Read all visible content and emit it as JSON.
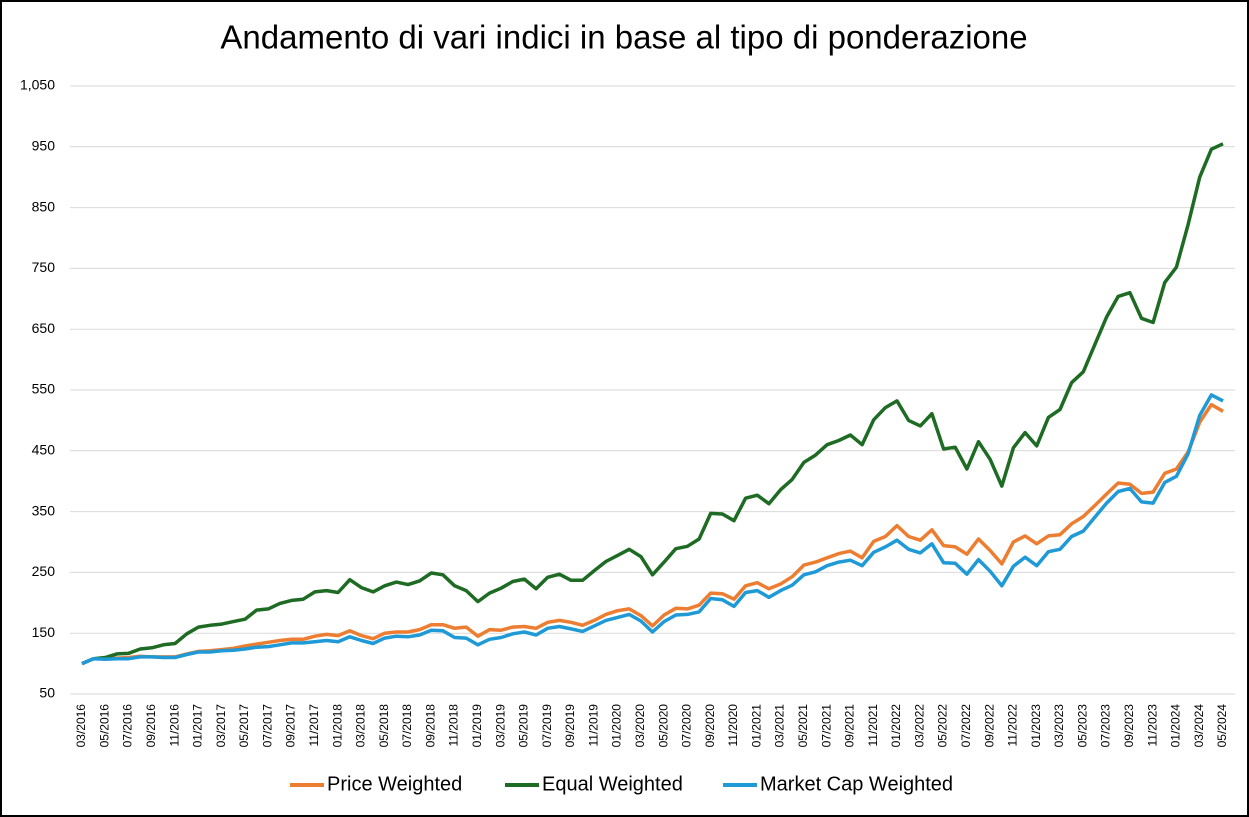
{
  "chart_data": {
    "type": "line",
    "title": "Andamento di vari indici in base al tipo di ponderazione",
    "categories": [
      "03/2016",
      null,
      "05/2016",
      null,
      "07/2016",
      null,
      "09/2016",
      null,
      "11/2016",
      null,
      "01/2017",
      null,
      "03/2017",
      null,
      "05/2017",
      null,
      "07/2017",
      null,
      "09/2017",
      null,
      "11/2017",
      null,
      "01/2018",
      null,
      "03/2018",
      null,
      "05/2018",
      null,
      "07/2018",
      null,
      "09/2018",
      null,
      "11/2018",
      null,
      "01/2019",
      null,
      "03/2019",
      null,
      "05/2019",
      null,
      "07/2019",
      null,
      "09/2019",
      null,
      "11/2019",
      null,
      "01/2020",
      null,
      "03/2020",
      null,
      "05/2020",
      null,
      "07/2020",
      null,
      "09/2020",
      null,
      "11/2020",
      null,
      "01/2021",
      null,
      "03/2021",
      null,
      "05/2021",
      null,
      "07/2021",
      null,
      "09/2021",
      null,
      "11/2021",
      null,
      "01/2022",
      null,
      "03/2022",
      null,
      "05/2022",
      null,
      "07/2022",
      null,
      "09/2022",
      null,
      "11/2022",
      null,
      "01/2023",
      null,
      "03/2023",
      null,
      "05/2023",
      null,
      "07/2023",
      null,
      "09/2023",
      null,
      "11/2023",
      null,
      "01/2024",
      null,
      "03/2024",
      null,
      "05/2024"
    ],
    "series": [
      {
        "name": "Price Weighted",
        "color": "#ed7d31",
        "values": [
          100,
          108,
          108,
          109,
          110,
          112,
          111,
          111,
          111,
          116,
          120,
          121,
          123,
          125,
          129,
          132,
          135,
          138,
          140,
          140,
          145,
          148,
          146,
          154,
          146,
          141,
          150,
          152,
          152,
          156,
          164,
          164,
          158,
          160,
          145,
          156,
          155,
          160,
          161,
          158,
          168,
          171,
          168,
          163,
          171,
          181,
          187,
          190,
          179,
          162,
          180,
          191,
          190,
          196,
          216,
          215,
          206,
          228,
          233,
          223,
          231,
          243,
          262,
          267,
          274,
          281,
          285,
          274,
          301,
          309,
          327,
          309,
          303,
          320,
          294,
          292,
          280,
          305,
          286,
          264,
          300,
          310,
          297,
          310,
          312,
          330,
          342,
          360,
          379,
          397,
          395,
          380,
          382,
          413,
          420,
          448,
          497,
          526,
          515
        ]
      },
      {
        "name": "Equal Weighted",
        "color": "#1e6b24",
        "values": [
          100,
          108,
          110,
          116,
          117,
          124,
          126,
          131,
          133,
          149,
          160,
          163,
          165,
          169,
          173,
          188,
          190,
          199,
          204,
          206,
          218,
          220,
          217,
          238,
          225,
          218,
          228,
          234,
          230,
          236,
          249,
          246,
          228,
          220,
          202,
          216,
          224,
          235,
          239,
          223,
          242,
          247,
          237,
          237,
          253,
          268,
          278,
          288,
          276,
          246,
          267,
          289,
          293,
          305,
          347,
          346,
          335,
          372,
          377,
          363,
          386,
          403,
          431,
          443,
          460,
          467,
          476,
          460,
          501,
          521,
          532,
          500,
          491,
          511,
          453,
          456,
          420,
          465,
          436,
          392,
          455,
          480,
          458,
          505,
          518,
          562,
          580,
          625,
          670,
          704,
          710,
          668,
          661,
          727,
          752,
          822,
          900,
          946,
          955
        ]
      },
      {
        "name": "Market Cap Weighted",
        "color": "#1f9ad6",
        "values": [
          100,
          108,
          107,
          108,
          108,
          111,
          111,
          110,
          110,
          115,
          119,
          119,
          121,
          122,
          124,
          127,
          128,
          131,
          134,
          134,
          136,
          138,
          136,
          144,
          138,
          133,
          142,
          145,
          144,
          147,
          155,
          154,
          143,
          142,
          131,
          140,
          143,
          149,
          152,
          147,
          158,
          161,
          157,
          153,
          162,
          171,
          176,
          181,
          170,
          152,
          169,
          180,
          181,
          185,
          207,
          205,
          194,
          217,
          220,
          209,
          220,
          229,
          246,
          251,
          261,
          267,
          270,
          261,
          283,
          292,
          303,
          288,
          282,
          297,
          266,
          265,
          247,
          271,
          252,
          228,
          260,
          275,
          261,
          284,
          288,
          309,
          318,
          341,
          364,
          383,
          388,
          366,
          364,
          398,
          408,
          445,
          508,
          542,
          532
        ]
      }
    ],
    "ylim": [
      50,
      1050
    ],
    "yticks": [
      50,
      150,
      250,
      350,
      450,
      550,
      650,
      750,
      850,
      950,
      {
        "value": 1050,
        "label": "1,050"
      }
    ],
    "grid": true,
    "legend": "bottom"
  }
}
